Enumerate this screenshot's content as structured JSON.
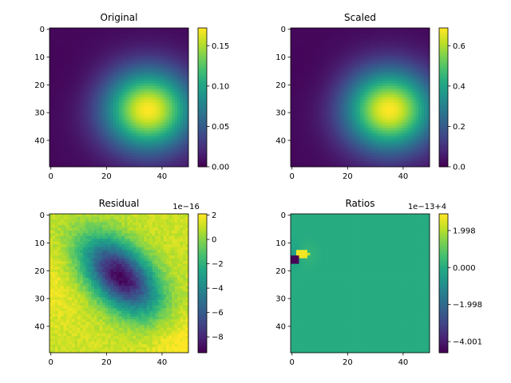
{
  "chart_data": [
    {
      "type": "heatmap",
      "title": "Original",
      "colormap": "viridis",
      "x_ticks": [
        "0",
        "20",
        "40"
      ],
      "y_ticks": [
        "0",
        "10",
        "20",
        "30",
        "40"
      ],
      "xlim": [
        0,
        50
      ],
      "ylim": [
        50,
        0
      ],
      "colorbar": {
        "ticks": [
          "0.00",
          "0.05",
          "0.10",
          "0.15"
        ],
        "tick_values": [
          0,
          0.05,
          0.1,
          0.15
        ],
        "range": [
          0,
          0.172
        ],
        "offset": ""
      },
      "field": {
        "peak_x": 35,
        "peak_y": 29,
        "sigma_x": 11,
        "sigma_y": 10,
        "min": 0,
        "max": 0.172
      }
    },
    {
      "type": "heatmap",
      "title": "Scaled",
      "colormap": "viridis",
      "x_ticks": [
        "0",
        "20",
        "40"
      ],
      "y_ticks": [
        "0",
        "10",
        "20",
        "30",
        "40"
      ],
      "xlim": [
        0,
        50
      ],
      "ylim": [
        50,
        0
      ],
      "colorbar": {
        "ticks": [
          "0.0",
          "0.2",
          "0.4",
          "0.6"
        ],
        "tick_values": [
          0,
          0.2,
          0.4,
          0.6
        ],
        "range": [
          0,
          0.688
        ],
        "offset": ""
      },
      "field": {
        "peak_x": 35,
        "peak_y": 29,
        "sigma_x": 11,
        "sigma_y": 10,
        "min": 0,
        "max": 0.688
      }
    },
    {
      "type": "heatmap",
      "title": "Residual",
      "colormap": "viridis",
      "x_ticks": [
        "0",
        "20",
        "40"
      ],
      "y_ticks": [
        "0",
        "10",
        "20",
        "30",
        "40"
      ],
      "xlim": [
        0,
        50
      ],
      "ylim": [
        50,
        0
      ],
      "colorbar": {
        "ticks": [
          "2",
          "0",
          "−2",
          "−4",
          "−6",
          "−8"
        ],
        "tick_values": [
          2,
          0,
          -2,
          -4,
          -6,
          -8
        ],
        "range": [
          -9.3,
          2.1
        ],
        "offset": "1e−16"
      },
      "field": {
        "center_x": 25,
        "center_y": 22,
        "min": -9.3,
        "max": 2.1
      }
    },
    {
      "type": "heatmap",
      "title": "Ratios",
      "colormap": "viridis",
      "x_ticks": [
        "0",
        "20",
        "40"
      ],
      "y_ticks": [
        "0",
        "10",
        "20",
        "30",
        "40"
      ],
      "xlim": [
        0,
        50
      ],
      "ylim": [
        50,
        0
      ],
      "colorbar": {
        "ticks": [
          "1.998",
          "0.000",
          "−1.998",
          "−4.001"
        ],
        "tick_values": [
          1.998,
          0,
          -1.998,
          -4.001
        ],
        "range": [
          -4.6,
          2.9
        ],
        "offset": "1e−13+4"
      },
      "field": {
        "background": 0,
        "hotspot_x": 3,
        "hotspot_y": 14
      }
    }
  ]
}
